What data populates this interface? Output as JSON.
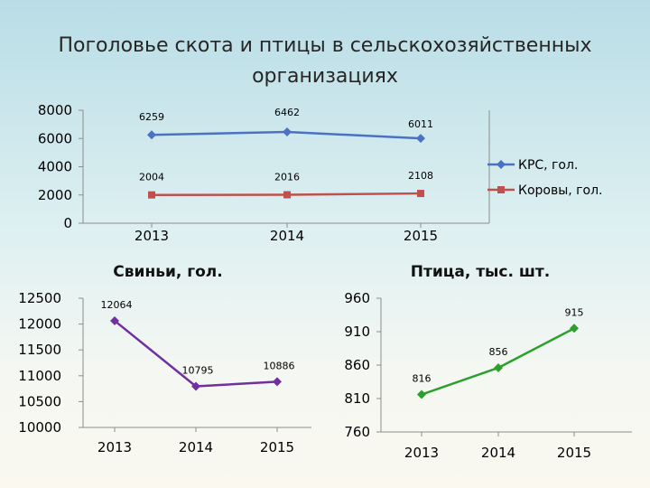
{
  "page": {
    "title_line1": "Поголовье скота и птицы в сельскохозяйственных",
    "title_line2": "организациях"
  },
  "chart_data": [
    {
      "type": "line",
      "title": "",
      "categories": [
        "2013",
        "2014",
        "2015"
      ],
      "ylim": [
        0,
        8000
      ],
      "yticks": [
        0,
        2000,
        4000,
        6000,
        8000
      ],
      "legend_position": "right",
      "series": [
        {
          "name": "КРС, гол.",
          "values": [
            6259,
            6462,
            6011
          ],
          "color": "#4a72c4",
          "marker": "diamond"
        },
        {
          "name": "Коровы, гол.",
          "values": [
            2004,
            2016,
            2108
          ],
          "color": "#c0504d",
          "marker": "square"
        }
      ]
    },
    {
      "type": "line",
      "title": "Свиньи, гол.",
      "categories": [
        "2013",
        "2014",
        "2015"
      ],
      "ylim": [
        10000,
        12500
      ],
      "yticks": [
        10000,
        10500,
        11000,
        11500,
        12000,
        12500
      ],
      "series": [
        {
          "values": [
            12064,
            10795,
            10886
          ],
          "color": "#7030a0",
          "marker": "diamond"
        }
      ]
    },
    {
      "type": "line",
      "title": "Птица, тыс. шт.",
      "categories": [
        "2013",
        "2014",
        "2015"
      ],
      "ylim": [
        760,
        960
      ],
      "yticks": [
        760,
        810,
        860,
        910,
        960
      ],
      "series": [
        {
          "values": [
            816,
            856,
            915
          ],
          "color": "#2ca02c",
          "marker": "diamond"
        }
      ]
    }
  ]
}
